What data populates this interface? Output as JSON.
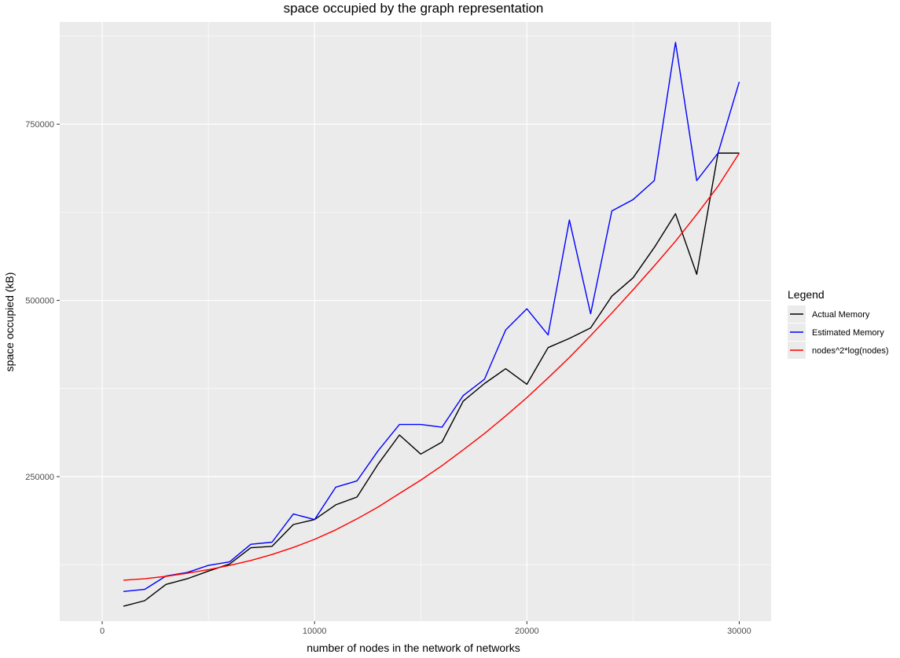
{
  "chart_data": {
    "type": "line",
    "title": "space occupied by the graph representation",
    "xlabel": "number of nodes in the network of networks",
    "ylabel": "space occupied (kB)",
    "xlim": [
      -2000,
      31500
    ],
    "ylim": [
      45000,
      895000
    ],
    "x_ticks": [
      0,
      10000,
      20000,
      30000
    ],
    "x_tick_labels": [
      "0",
      "10000",
      "20000",
      "30000"
    ],
    "y_ticks": [
      250000,
      500000,
      750000
    ],
    "y_tick_labels": [
      "250000",
      "500000",
      "750000"
    ],
    "grid": true,
    "legend": {
      "title": "Legend",
      "position": "right"
    },
    "x": [
      1000,
      2000,
      3000,
      4000,
      5000,
      6000,
      7000,
      8000,
      9000,
      10000,
      11000,
      12000,
      13000,
      14000,
      15000,
      16000,
      17000,
      18000,
      19000,
      20000,
      21000,
      22000,
      23000,
      24000,
      25000,
      26000,
      27000,
      28000,
      29000,
      30000
    ],
    "series": [
      {
        "name": "Actual Memory",
        "color": "#000000",
        "values": [
          66000,
          74000,
          97000,
          105000,
          116000,
          126000,
          149000,
          151000,
          182000,
          189000,
          210000,
          221000,
          268000,
          309000,
          282000,
          299000,
          357000,
          382000,
          403000,
          381000,
          433000,
          446000,
          461000,
          506000,
          532000,
          575000,
          623000,
          537000,
          709000,
          709000
        ]
      },
      {
        "name": "Estimated Memory",
        "color": "#0000ff",
        "values": [
          87000,
          90000,
          109000,
          114000,
          124000,
          129000,
          154000,
          157000,
          197000,
          189000,
          235000,
          244000,
          287000,
          324000,
          324000,
          320000,
          365000,
          388000,
          458000,
          488000,
          451000,
          614000,
          481000,
          627000,
          643000,
          670000,
          866000,
          670000,
          709000,
          810000
        ]
      },
      {
        "name": "nodes^2*log(nodes)",
        "color": "#ff0000",
        "values": [
          103000,
          105000,
          108500,
          113000,
          118000,
          124000,
          131000,
          139500,
          149500,
          161000,
          174500,
          190000,
          207000,
          226000,
          245000,
          265500,
          288000,
          311000,
          336000,
          362000,
          390000,
          419000,
          450000,
          482000,
          515000,
          549000,
          584000,
          622000,
          662000,
          709000
        ]
      }
    ]
  }
}
